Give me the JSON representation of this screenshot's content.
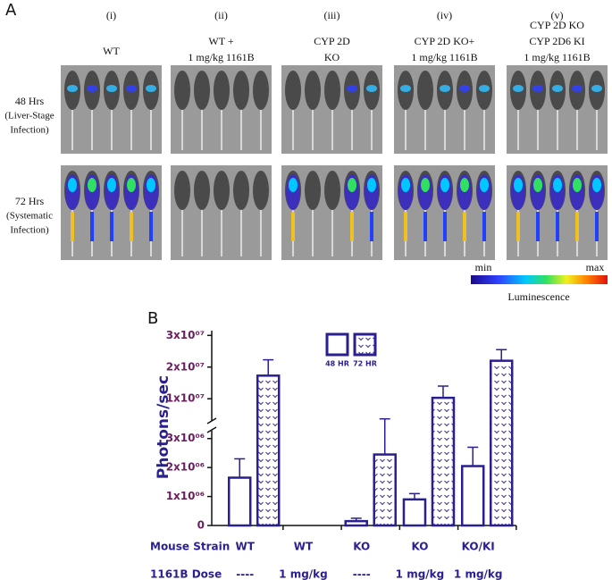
{
  "panel_a": {
    "label": "A",
    "columns": [
      {
        "numeral": "(i)",
        "lines": [
          "WT"
        ]
      },
      {
        "numeral": "(ii)",
        "lines": [
          "WT +",
          "1 mg/kg 1161B"
        ]
      },
      {
        "numeral": "(iii)",
        "lines": [
          "CYP 2D",
          "KO"
        ]
      },
      {
        "numeral": "(iv)",
        "lines": [
          "CYP 2D KO+",
          "1 mg/kg 1161B"
        ]
      },
      {
        "numeral": "(v)",
        "lines": [
          "CYP 2D KO",
          "CYP 2D6 KI",
          "1 mg/kg 1161B"
        ]
      }
    ],
    "rows": [
      {
        "lines": [
          "48 Hrs",
          "(Liver-Stage",
          "Infection)"
        ]
      },
      {
        "lines": [
          "72 Hrs",
          "(Systematic",
          "Infection)"
        ]
      }
    ],
    "colorbar": {
      "min": "min",
      "max": "max",
      "label": "Luminescence"
    }
  },
  "panel_b_label": "B",
  "chart_data": {
    "type": "bar",
    "y_label": "Photons/sec",
    "row_labels": [
      "Mouse Strain",
      "1161B Dose"
    ],
    "categories": [
      "WT",
      "WT",
      "KO",
      "KO",
      "KO/KI"
    ],
    "doses": [
      "----",
      "1 mg/kg",
      "----",
      "1 mg/kg",
      "1 mg/kg"
    ],
    "series": [
      {
        "name": "48 HR",
        "color": "#2a1f8f",
        "pattern": false,
        "values": [
          1650000,
          0,
          150000,
          900000,
          2050000
        ],
        "errors": [
          650000,
          null,
          100000,
          200000,
          650000
        ]
      },
      {
        "name": "72 HR",
        "color": "#2a1f8f",
        "pattern": true,
        "values": [
          17300000,
          0,
          2450000,
          10300000,
          22000000
        ],
        "errors": [
          5000000,
          null,
          1200000,
          3700000,
          3500000
        ]
      }
    ],
    "axis_segments": [
      {
        "ylim": [
          0,
          3300000
        ],
        "yticks": [
          0,
          {
            "value": 1000000,
            "label": "1x10⁰⁶"
          },
          {
            "value": 2000000,
            "label": "2x10⁰⁶"
          },
          {
            "value": 3000000,
            "label": "3x10⁰⁶"
          }
        ]
      },
      {
        "ylim": [
          3000000,
          31500000
        ],
        "yticks": [
          {
            "value": 10000000,
            "label": "1x10⁰⁷"
          },
          {
            "value": 20000000,
            "label": "2x10⁰⁷"
          },
          {
            "value": 30000000,
            "label": "3x10⁰⁷"
          }
        ]
      }
    ]
  }
}
